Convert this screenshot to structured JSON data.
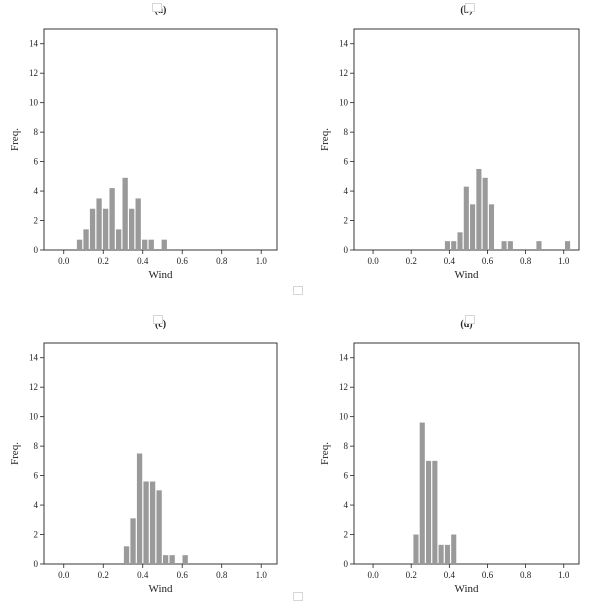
{
  "chart_data": [
    {
      "type": "bar",
      "title": "(a)",
      "xlabel": "Wind",
      "ylabel": "Freq.",
      "xlim": [
        -0.1,
        1.08
      ],
      "ylim": [
        0,
        15
      ],
      "xticks": [
        0.0,
        0.2,
        0.4,
        0.6,
        0.8,
        1.0
      ],
      "xtick_labels": [
        "0.0",
        "0.2",
        "0.4",
        "0.6",
        "0.8",
        "1.0"
      ],
      "yticks": [
        0,
        2,
        4,
        6,
        8,
        10,
        12,
        14
      ],
      "ytick_labels": [
        "0",
        "2",
        "4",
        "6",
        "8",
        "10",
        "12",
        "14"
      ],
      "bin_width": 0.033,
      "bar_color": "#9a9a9a",
      "grid": false,
      "x": [
        0.08,
        0.113,
        0.146,
        0.179,
        0.212,
        0.245,
        0.278,
        0.311,
        0.344,
        0.377,
        0.41,
        0.443,
        0.509
      ],
      "values": [
        0.7,
        1.4,
        2.8,
        3.5,
        2.8,
        4.2,
        1.4,
        4.9,
        2.8,
        3.5,
        0.7,
        0.7,
        0.7
      ]
    },
    {
      "type": "bar",
      "title": "(b)",
      "xlabel": "Wind",
      "ylabel": "Freq.",
      "xlim": [
        -0.1,
        1.08
      ],
      "ylim": [
        0,
        15
      ],
      "xticks": [
        0.0,
        0.2,
        0.4,
        0.6,
        0.8,
        1.0
      ],
      "xtick_labels": [
        "0.0",
        "0.2",
        "0.4",
        "0.6",
        "0.8",
        "1.0"
      ],
      "yticks": [
        0,
        2,
        4,
        6,
        8,
        10,
        12,
        14
      ],
      "ytick_labels": [
        "0",
        "2",
        "4",
        "6",
        "8",
        "10",
        "12",
        "14"
      ],
      "bin_width": 0.033,
      "bar_color": "#9a9a9a",
      "grid": false,
      "x": [
        0.39,
        0.423,
        0.456,
        0.489,
        0.522,
        0.555,
        0.588,
        0.621,
        0.687,
        0.72,
        0.87,
        1.02
      ],
      "values": [
        0.6,
        0.6,
        1.2,
        4.3,
        3.1,
        5.5,
        4.9,
        3.1,
        0.6,
        0.6,
        0.6,
        0.6
      ]
    },
    {
      "type": "bar",
      "title": "(c)",
      "xlabel": "Wind",
      "ylabel": "Freq.",
      "xlim": [
        -0.1,
        1.08
      ],
      "ylim": [
        0,
        15
      ],
      "xticks": [
        0.0,
        0.2,
        0.4,
        0.6,
        0.8,
        1.0
      ],
      "xtick_labels": [
        "0.0",
        "0.2",
        "0.4",
        "0.6",
        "0.8",
        "1.0"
      ],
      "yticks": [
        0,
        2,
        4,
        6,
        8,
        10,
        12,
        14
      ],
      "ytick_labels": [
        "0",
        "2",
        "4",
        "6",
        "8",
        "10",
        "12",
        "14"
      ],
      "bin_width": 0.033,
      "bar_color": "#9a9a9a",
      "grid": false,
      "x": [
        0.318,
        0.351,
        0.384,
        0.417,
        0.45,
        0.483,
        0.516,
        0.549,
        0.615
      ],
      "values": [
        1.2,
        3.1,
        7.5,
        5.6,
        5.6,
        5.0,
        0.6,
        0.6,
        0.6
      ]
    },
    {
      "type": "bar",
      "title": "(d)",
      "xlabel": "Wind",
      "ylabel": "Freq.",
      "xlim": [
        -0.1,
        1.08
      ],
      "ylim": [
        0,
        15
      ],
      "xticks": [
        0.0,
        0.2,
        0.4,
        0.6,
        0.8,
        1.0
      ],
      "xtick_labels": [
        "0.0",
        "0.2",
        "0.4",
        "0.6",
        "0.8",
        "1.0"
      ],
      "yticks": [
        0,
        2,
        4,
        6,
        8,
        10,
        12,
        14
      ],
      "ytick_labels": [
        "0",
        "2",
        "4",
        "6",
        "8",
        "10",
        "12",
        "14"
      ],
      "bin_width": 0.033,
      "bar_color": "#9a9a9a",
      "grid": false,
      "x": [
        0.225,
        0.258,
        0.291,
        0.324,
        0.357,
        0.39,
        0.423
      ],
      "values": [
        2.0,
        9.6,
        7.0,
        7.0,
        1.3,
        1.3,
        2.0
      ]
    }
  ]
}
